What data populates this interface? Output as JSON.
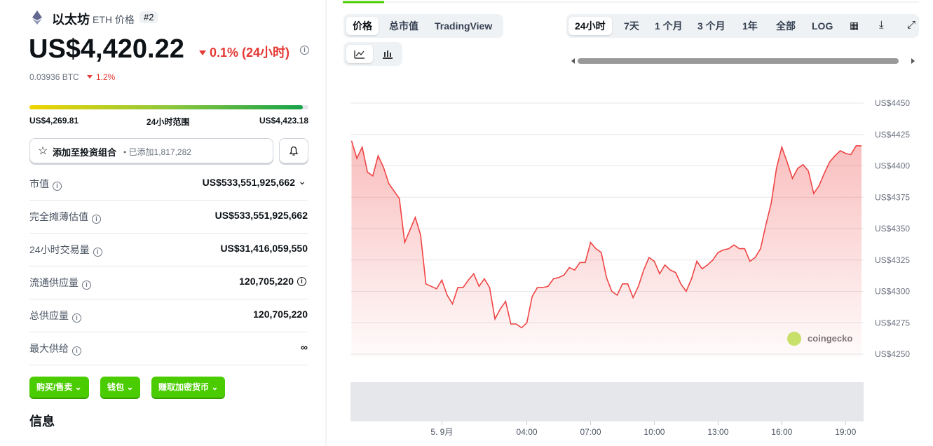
{
  "coin": {
    "name": "以太坊",
    "symbol": "ETH 价格",
    "rank": "#2",
    "price": "US$4,420.22",
    "change": "0.1% (24小时)",
    "btc_price": "0.03936 BTC",
    "btc_change": "1.2%"
  },
  "range": {
    "low": "US$4,269.81",
    "label": "24小时范围",
    "high": "US$4,423.18"
  },
  "portfolio": {
    "button": "添加至投资组合",
    "added": "已添加1,817,282"
  },
  "stats": [
    {
      "label": "市值",
      "value": "US$533,551,925,662"
    },
    {
      "label": "完全摊薄估值",
      "value": "US$533,551,925,662"
    },
    {
      "label": "24小时交易量",
      "value": "US$31,416,059,550"
    },
    {
      "label": "流通供应量",
      "value": "120,705,220"
    },
    {
      "label": "总供应量",
      "value": "120,705,220"
    },
    {
      "label": "最大供给",
      "value": "∞"
    }
  ],
  "actions": [
    "购买/售卖",
    "钱包",
    "赚取加密货币"
  ],
  "info_title": "信息",
  "tabs": [
    "价格",
    "总市值",
    "TradingView"
  ],
  "ranges": [
    "24小时",
    "7天",
    "1 个月",
    "3 个月",
    "1年",
    "全部",
    "LOG"
  ],
  "watermark": "coingecko",
  "chart_data": {
    "type": "line",
    "color": "#ef4444",
    "grid": true,
    "x": [
      -4.25,
      -4,
      -3.75,
      -3.5,
      -3.25,
      -3,
      -2.75,
      -2.5,
      -2.25,
      -2,
      -1.75,
      -1.5,
      -1.25,
      -1,
      -0.75,
      -0.5,
      -0.25,
      0,
      0.25,
      0.5,
      0.75,
      1,
      1.25,
      1.5,
      1.75,
      2,
      2.25,
      2.5,
      2.75,
      3,
      3.25,
      3.5,
      3.75,
      4,
      4.25,
      4.5,
      4.75,
      5,
      5.25,
      5.5,
      5.75,
      6,
      6.25,
      6.5,
      6.75,
      7,
      7.25,
      7.5,
      7.75,
      8,
      8.25,
      8.5,
      8.75,
      9,
      9.25,
      9.5,
      9.75,
      10,
      10.25,
      10.5,
      10.75,
      11,
      11.25,
      11.5,
      11.75,
      12,
      12.25,
      12.5,
      12.75,
      13,
      13.25,
      13.5,
      13.75,
      14,
      14.25,
      14.5,
      14.75,
      15,
      15.25,
      15.5,
      15.75,
      16,
      16.25,
      16.5,
      16.75,
      17,
      17.25,
      17.5,
      17.75,
      18,
      18.25,
      18.5,
      18.75,
      19,
      19.25,
      19.5,
      19.75
    ],
    "values": [
      4420,
      4406,
      4415,
      4395,
      4392,
      4408,
      4399,
      4386,
      4380,
      4374,
      4339,
      4349,
      4359,
      4345,
      4306,
      4304,
      4302,
      4309,
      4297,
      4290,
      4303,
      4303,
      4309,
      4314,
      4304,
      4310,
      4303,
      4278,
      4286,
      4292,
      4274,
      4274,
      4271,
      4275,
      4296,
      4303,
      4303,
      4304,
      4310,
      4311,
      4313,
      4319,
      4317,
      4323,
      4323,
      4339,
      4334,
      4331,
      4311,
      4300,
      4297,
      4306,
      4306,
      4295,
      4304,
      4317,
      4327,
      4324,
      4314,
      4321,
      4317,
      4315,
      4306,
      4300,
      4310,
      4324,
      4318,
      4321,
      4325,
      4331,
      4333,
      4334,
      4337,
      4334,
      4334,
      4324,
      4327,
      4334,
      4353,
      4370,
      4398,
      4415,
      4403,
      4390,
      4398,
      4401,
      4396,
      4378,
      4384,
      4394,
      4403,
      4408,
      4412,
      4410,
      4409,
      4416,
      4416
    ],
    "xlim": [
      -4.3,
      19.85
    ],
    "xticks": [
      {
        "value": 0,
        "label": "5. 9月"
      },
      {
        "value": 4,
        "label": "04:00"
      },
      {
        "value": 7,
        "label": "07:00"
      },
      {
        "value": 10,
        "label": "10:00"
      },
      {
        "value": 13,
        "label": "13:00"
      },
      {
        "value": 16,
        "label": "16:00"
      },
      {
        "value": 19,
        "label": "19:00"
      }
    ],
    "ylim": [
      4250,
      4450
    ],
    "yticks": [
      {
        "value": 4250,
        "label": "US$4250"
      },
      {
        "value": 4275,
        "label": "US$4275"
      },
      {
        "value": 4300,
        "label": "US$4300"
      },
      {
        "value": 4325,
        "label": "US$4325"
      },
      {
        "value": 4350,
        "label": "US$4350"
      },
      {
        "value": 4375,
        "label": "US$4375"
      },
      {
        "value": 4400,
        "label": "US$4400"
      },
      {
        "value": 4425,
        "label": "US$4425"
      },
      {
        "value": 4450,
        "label": "US$4450"
      }
    ]
  }
}
